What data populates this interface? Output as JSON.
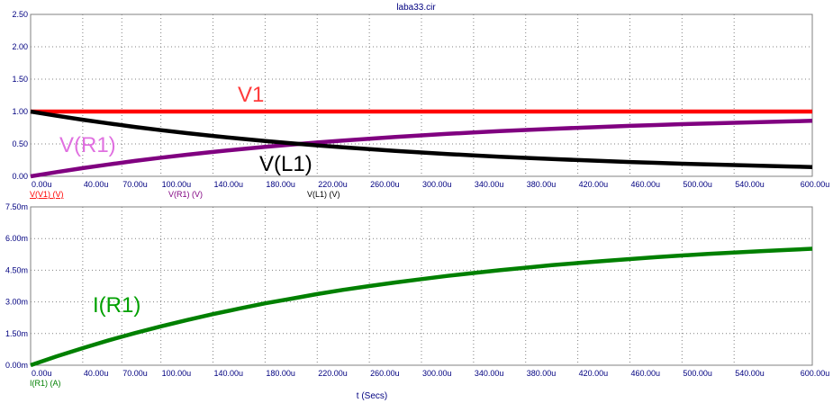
{
  "window": {
    "title": "laba33.cir"
  },
  "chart_data": [
    {
      "type": "line",
      "xlim": [
        0,
        600
      ],
      "ylim": [
        0,
        2.5
      ],
      "x_ticks": [
        0,
        40,
        70,
        100,
        140,
        180,
        220,
        260,
        300,
        340,
        380,
        420,
        460,
        500,
        540,
        600
      ],
      "x_tick_labels": [
        "0.00u",
        "40.00u",
        "70.00u",
        "100.00u",
        "140.00u",
        "180.00u",
        "220.00u",
        "260.00u",
        "300.00u",
        "340.00u",
        "380.00u",
        "420.00u",
        "460.00u",
        "500.00u",
        "540.00u",
        "600.00u"
      ],
      "y_ticks": [
        0,
        0.5,
        1.0,
        1.5,
        2.0,
        2.5
      ],
      "y_tick_labels": [
        "0.00",
        "0.50",
        "1.00",
        "1.50",
        "2.00",
        "2.50"
      ],
      "grid": true,
      "x": [
        0,
        20,
        40,
        60,
        80,
        100,
        120,
        140,
        160,
        180,
        200,
        220,
        240,
        260,
        280,
        300,
        320,
        340,
        360,
        380,
        400,
        420,
        440,
        460,
        480,
        500,
        520,
        540,
        560,
        580,
        600
      ],
      "series": [
        {
          "legend": "V(V1) (V)",
          "annotation": "V1",
          "color": "#ff0000",
          "legend_color": "#ff0000",
          "anno_color": "#ff3b3b",
          "values": [
            1,
            1,
            1,
            1,
            1,
            1,
            1,
            1,
            1,
            1,
            1,
            1,
            1,
            1,
            1,
            1,
            1,
            1,
            1,
            1,
            1,
            1,
            1,
            1,
            1,
            1,
            1,
            1,
            1,
            1,
            1
          ]
        },
        {
          "legend": "V(R1) (V)",
          "annotation": "V(R1)",
          "color": "#800080",
          "legend_color": "#800080",
          "anno_color": "#e070e0",
          "values": [
            0,
            0.065,
            0.127,
            0.184,
            0.237,
            0.287,
            0.333,
            0.377,
            0.417,
            0.455,
            0.49,
            0.522,
            0.553,
            0.581,
            0.607,
            0.632,
            0.655,
            0.676,
            0.697,
            0.715,
            0.733,
            0.749,
            0.764,
            0.779,
            0.792,
            0.805,
            0.816,
            0.827,
            0.838,
            0.847,
            0.857
          ]
        },
        {
          "legend": "V(L1) (V)",
          "annotation": "V(L1)",
          "color": "#000000",
          "legend_color": "#000000",
          "anno_color": "#000000",
          "values": [
            1,
            0.935,
            0.873,
            0.816,
            0.763,
            0.713,
            0.667,
            0.623,
            0.583,
            0.545,
            0.51,
            0.478,
            0.447,
            0.419,
            0.393,
            0.368,
            0.345,
            0.324,
            0.303,
            0.285,
            0.267,
            0.251,
            0.236,
            0.221,
            0.208,
            0.195,
            0.184,
            0.173,
            0.162,
            0.153,
            0.143
          ]
        }
      ]
    },
    {
      "type": "line",
      "xlim": [
        0,
        600
      ],
      "ylim": [
        0,
        7.5
      ],
      "x_ticks": [
        0,
        40,
        70,
        100,
        140,
        180,
        220,
        260,
        300,
        340,
        380,
        420,
        460,
        500,
        540,
        600
      ],
      "x_tick_labels": [
        "0.00u",
        "40.00u",
        "70.00u",
        "100.00u",
        "140.00u",
        "180.00u",
        "220.00u",
        "260.00u",
        "300.00u",
        "340.00u",
        "380.00u",
        "420.00u",
        "460.00u",
        "500.00u",
        "540.00u",
        "600.00u"
      ],
      "y_ticks": [
        0,
        1.5,
        3.0,
        4.5,
        6.0,
        7.5
      ],
      "y_tick_labels": [
        "0.00m",
        "1.50m",
        "3.00m",
        "4.50m",
        "6.00m",
        "7.50m"
      ],
      "xlabel": "t (Secs)",
      "grid": true,
      "x": [
        0,
        20,
        40,
        60,
        80,
        100,
        120,
        140,
        160,
        180,
        200,
        220,
        240,
        260,
        280,
        300,
        320,
        340,
        360,
        380,
        400,
        420,
        440,
        460,
        480,
        500,
        520,
        540,
        560,
        580,
        600
      ],
      "series": [
        {
          "legend": "I(R1) (A)",
          "annotation": "I(R1)",
          "color": "#008000",
          "legend_color": "#008000",
          "anno_color": "#00a000",
          "values": [
            0,
            0.42,
            0.81,
            1.18,
            1.52,
            1.84,
            2.14,
            2.42,
            2.68,
            2.93,
            3.15,
            3.37,
            3.57,
            3.75,
            3.92,
            4.08,
            4.23,
            4.37,
            4.5,
            4.62,
            4.74,
            4.84,
            4.94,
            5.03,
            5.12,
            5.2,
            5.27,
            5.34,
            5.4,
            5.46,
            5.52
          ]
        }
      ]
    }
  ]
}
